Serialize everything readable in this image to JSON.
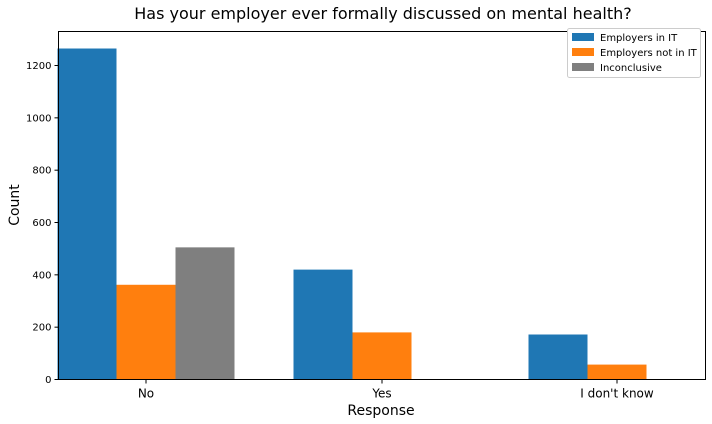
{
  "chart_data": {
    "type": "bar",
    "title": "Has your employer ever formally discussed on mental health?",
    "xlabel": "Response",
    "ylabel": "Count",
    "categories": [
      "No",
      "Yes",
      "I don't know"
    ],
    "ylim": [
      0,
      1330
    ],
    "yticks": [
      0,
      200,
      400,
      600,
      800,
      1000,
      1200
    ],
    "legend_position": "top-right",
    "grid": false,
    "series": [
      {
        "name": "Employers in IT",
        "color": "#1f77b4",
        "values": [
          1265,
          420,
          172
        ]
      },
      {
        "name": "Employers not in IT",
        "color": "#ff7f0e",
        "values": [
          362,
          180,
          57
        ]
      },
      {
        "name": "Inconclusive",
        "color": "#7f7f7f",
        "values": [
          505,
          0,
          0
        ]
      }
    ]
  }
}
